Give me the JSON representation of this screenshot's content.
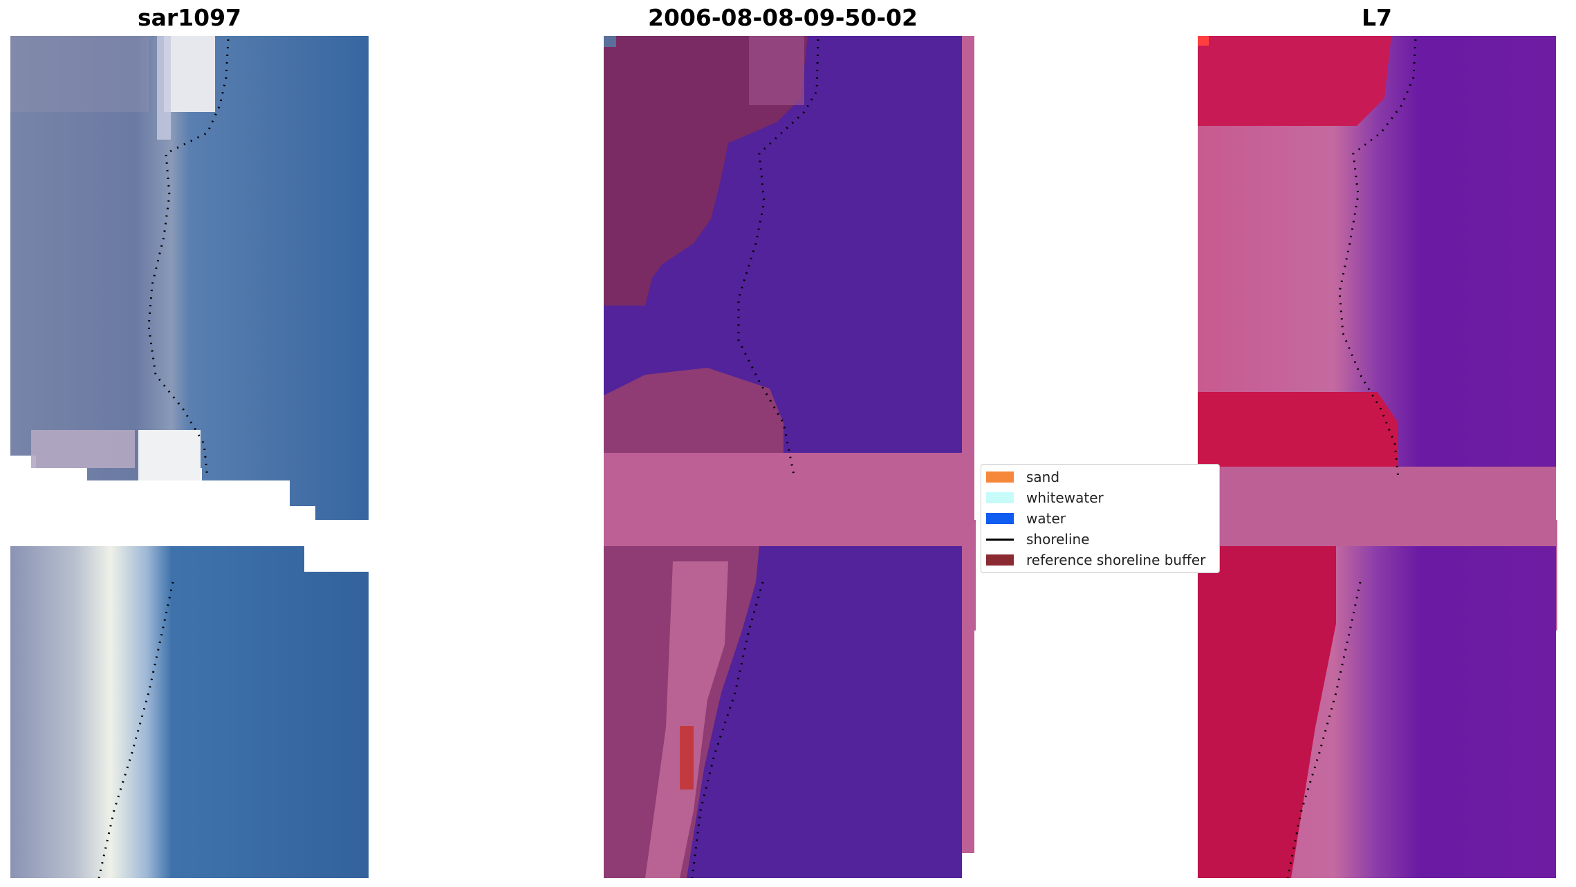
{
  "panels": [
    {
      "title": "sar1097"
    },
    {
      "title": "2006-08-08-09-50-02"
    },
    {
      "title": "L7"
    }
  ],
  "legend": {
    "items": [
      {
        "label": "sand",
        "color": "#f5883a",
        "kind": "patch"
      },
      {
        "label": "whitewater",
        "color": "#c6fbfa",
        "kind": "patch"
      },
      {
        "label": "water",
        "color": "#0e5cf0",
        "kind": "patch"
      },
      {
        "label": "shoreline",
        "color": "#000000",
        "kind": "line"
      },
      {
        "label": "reference shoreline buffer",
        "color": "#8b2a33",
        "kind": "patch"
      }
    ]
  },
  "colors": {
    "rgb_water": "#31609a",
    "rgb_land": "#6f7fa6",
    "rgb_whitewater": "#e8ecf0",
    "class_water": "#52239a",
    "class_land": "#7a2b63",
    "class_mask": "#bd6095",
    "class_sand_patch": "#c23a3f",
    "ndwi_high": "#c4103f",
    "ndwi_low": "#6a1aa3",
    "ndwi_mask": "#bd6095"
  }
}
